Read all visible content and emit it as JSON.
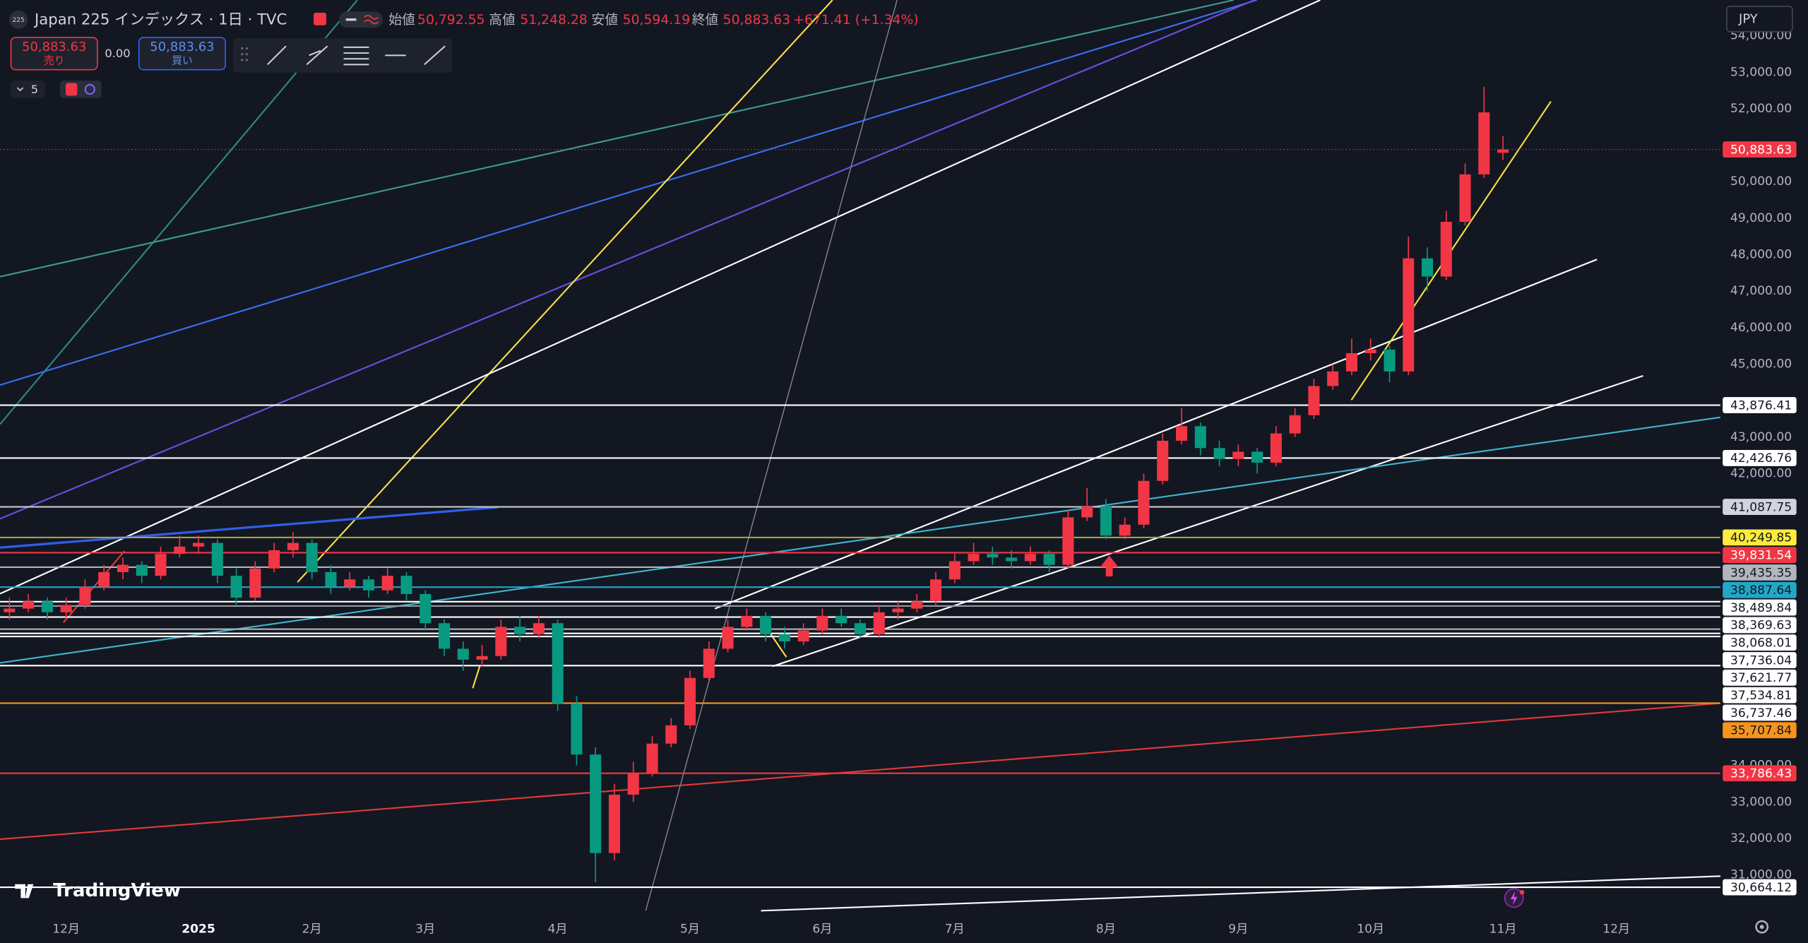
{
  "header": {
    "symbol_logo": "225",
    "title": "Japan 225 インデックス · 1日 · TVC",
    "ohlc": [
      {
        "name": "始値",
        "value": "50,792.55"
      },
      {
        "name": "高値",
        "value": "51,248.28"
      },
      {
        "name": "安値",
        "value": "50,594.19"
      },
      {
        "name": "終値",
        "value": "50,883.63"
      }
    ],
    "change": "+671.41 (+1.34%)"
  },
  "trade": {
    "sell_price": "50,883.63",
    "sell_label": "売り",
    "spread": "0.00",
    "buy_price": "50,883.63",
    "buy_label": "買い"
  },
  "indicator_count": 5,
  "currency": "JPY",
  "brand": "TradingView",
  "chart_data": {
    "type": "candlestick",
    "up_color": "#f23645",
    "down_color": "#089981",
    "grid": false,
    "categories": [
      null,
      null,
      null,
      "12月",
      null,
      null,
      null,
      null,
      null,
      null,
      "2025",
      null,
      null,
      null,
      null,
      null,
      "2月",
      null,
      null,
      null,
      null,
      null,
      "3月",
      null,
      null,
      null,
      null,
      null,
      null,
      "4月",
      null,
      null,
      null,
      null,
      null,
      null,
      "5月",
      null,
      null,
      null,
      null,
      null,
      null,
      "6月",
      null,
      null,
      null,
      null,
      null,
      null,
      "7月",
      null,
      null,
      null,
      null,
      null,
      null,
      null,
      "8月",
      null,
      null,
      null,
      null,
      null,
      null,
      "9月",
      null,
      null,
      null,
      null,
      null,
      null,
      "10月",
      null,
      null,
      null,
      null,
      null,
      null,
      "11月",
      null,
      null,
      null,
      null,
      null,
      "12月",
      null,
      null,
      null,
      null,
      null
    ],
    "values": [
      [
        38200,
        38600,
        38000,
        38300
      ],
      [
        38300,
        38700,
        38200,
        38500
      ],
      [
        38500,
        38600,
        38000,
        38200
      ],
      [
        38200,
        38600,
        38000,
        38400
      ],
      [
        38400,
        39100,
        38300,
        38900
      ],
      [
        38900,
        39500,
        38800,
        39300
      ],
      [
        39300,
        39700,
        39100,
        39500
      ],
      [
        39500,
        39600,
        39000,
        39200
      ],
      [
        39200,
        40000,
        39100,
        39800
      ],
      [
        39800,
        40300,
        39700,
        40000
      ],
      [
        40000,
        40300,
        39800,
        40100
      ],
      [
        40100,
        40200,
        39000,
        39200
      ],
      [
        39200,
        39400,
        38400,
        38600
      ],
      [
        38600,
        39600,
        38500,
        39400
      ],
      [
        39400,
        40100,
        39300,
        39900
      ],
      [
        39900,
        40400,
        39700,
        40100
      ],
      [
        40100,
        40200,
        39100,
        39300
      ],
      [
        39300,
        39500,
        38700,
        38900
      ],
      [
        38900,
        39300,
        38800,
        39100
      ],
      [
        39100,
        39200,
        38600,
        38800
      ],
      [
        38800,
        39400,
        38700,
        39200
      ],
      [
        39200,
        39300,
        38500,
        38700
      ],
      [
        38700,
        38800,
        37700,
        37900
      ],
      [
        37900,
        38000,
        37000,
        37200
      ],
      [
        37200,
        37400,
        36600,
        36900
      ],
      [
        36900,
        37300,
        36700,
        37000
      ],
      [
        37000,
        38000,
        36900,
        37800
      ],
      [
        37800,
        38100,
        37400,
        37600
      ],
      [
        37600,
        38100,
        37500,
        37900
      ],
      [
        37900,
        38000,
        35500,
        35700
      ],
      [
        35700,
        35900,
        34000,
        34300
      ],
      [
        34300,
        34500,
        30800,
        31600
      ],
      [
        31600,
        33500,
        31400,
        33200
      ],
      [
        33200,
        34100,
        33000,
        33800
      ],
      [
        33800,
        34800,
        33700,
        34600
      ],
      [
        34600,
        35300,
        34500,
        35100
      ],
      [
        35100,
        36600,
        35000,
        36400
      ],
      [
        36400,
        37400,
        36300,
        37200
      ],
      [
        37200,
        38000,
        37100,
        37800
      ],
      [
        37800,
        38300,
        37700,
        38100
      ],
      [
        38100,
        38200,
        37400,
        37600
      ],
      [
        37600,
        37800,
        37200,
        37400
      ],
      [
        37400,
        37900,
        37300,
        37700
      ],
      [
        37700,
        38300,
        37600,
        38100
      ],
      [
        38100,
        38300,
        37800,
        37900
      ],
      [
        37900,
        38000,
        37500,
        37600
      ],
      [
        37600,
        38400,
        37500,
        38200
      ],
      [
        38200,
        38500,
        38000,
        38300
      ],
      [
        38300,
        38700,
        38200,
        38500
      ],
      [
        38500,
        39300,
        38400,
        39100
      ],
      [
        39100,
        39800,
        39000,
        39600
      ],
      [
        39600,
        40100,
        39500,
        39800
      ],
      [
        39800,
        40000,
        39500,
        39700
      ],
      [
        39700,
        39900,
        39400,
        39600
      ],
      [
        39600,
        40000,
        39500,
        39800
      ],
      [
        39800,
        39900,
        39300,
        39500
      ],
      [
        39500,
        41000,
        39400,
        40800
      ],
      [
        40800,
        41600,
        40700,
        41100
      ],
      [
        41100,
        41300,
        40200,
        40300
      ],
      [
        40300,
        40800,
        40200,
        40600
      ],
      [
        40600,
        42000,
        40500,
        41800
      ],
      [
        41800,
        43100,
        41700,
        42900
      ],
      [
        42900,
        43800,
        42800,
        43300
      ],
      [
        43300,
        43400,
        42500,
        42700
      ],
      [
        42700,
        42900,
        42200,
        42400
      ],
      [
        42400,
        42800,
        42200,
        42600
      ],
      [
        42600,
        42700,
        42000,
        42300
      ],
      [
        42300,
        43300,
        42200,
        43100
      ],
      [
        43100,
        43800,
        43000,
        43600
      ],
      [
        43600,
        44600,
        43500,
        44400
      ],
      [
        44400,
        45000,
        44300,
        44800
      ],
      [
        44800,
        45700,
        44700,
        45300
      ],
      [
        45300,
        45700,
        45100,
        45400
      ],
      [
        45400,
        45500,
        44500,
        44800
      ],
      [
        44800,
        48500,
        44700,
        47900
      ],
      [
        47900,
        48200,
        47000,
        47400
      ],
      [
        47400,
        49200,
        47300,
        48900
      ],
      [
        48900,
        50500,
        48800,
        50200
      ],
      [
        50200,
        52600,
        50100,
        51900
      ],
      [
        50792.55,
        51248.28,
        50594.19,
        50883.63
      ],
      null,
      null,
      null,
      null,
      null,
      null,
      null,
      null,
      null,
      null,
      null
    ],
    "ylim": [
      29925,
      54980
    ],
    "yticks": [
      {
        "value": 54000,
        "label": "54,000.00"
      },
      {
        "value": 53000,
        "label": "53,000.00"
      },
      {
        "value": 52000,
        "label": "52,000.00"
      },
      {
        "value": 50000,
        "label": "50,000.00"
      },
      {
        "value": 49000,
        "label": "49,000.00"
      },
      {
        "value": 48000,
        "label": "48,000.00"
      },
      {
        "value": 47000,
        "label": "47,000.00"
      },
      {
        "value": 46000,
        "label": "46,000.00"
      },
      {
        "value": 45000,
        "label": "45,000.00"
      },
      {
        "value": 43000,
        "label": "43,000.00"
      },
      {
        "value": 42000,
        "label": "42,000.00"
      },
      {
        "value": 34000,
        "label": "34,000.00"
      },
      {
        "value": 33000,
        "label": "33,000.00"
      },
      {
        "value": 32000,
        "label": "32,000.00"
      },
      {
        "value": 31000,
        "label": "31,000.00"
      }
    ],
    "last_price": {
      "value": 50883.63,
      "label": "50,883.63",
      "color": "#f23645",
      "label_bg": "#f23645",
      "text_color": "#ffffff"
    },
    "price_lines": [
      {
        "value": 43876.41,
        "label": "43,876.41",
        "color": "#ffffff",
        "label_bg": "#ffffff",
        "text_color": "#131722"
      },
      {
        "value": 42426.76,
        "label": "42,426.76",
        "color": "#ffffff",
        "label_bg": "#ffffff",
        "text_color": "#131722"
      },
      {
        "value": 41087.75,
        "label": "41,087.75",
        "color": "#c8c9cc",
        "label_bg": "#d1d4dc",
        "text_color": "#131722"
      },
      {
        "value": 40249.85,
        "label": "40,249.85",
        "color": "#b5a642",
        "label_bg": "#ffeb3b",
        "text_color": "#131722"
      },
      {
        "value": 39831.54,
        "label": "39,831.54",
        "color": "#f23645",
        "label_bg": "#f23645",
        "text_color": "#ffffff"
      },
      {
        "value": 39435.35,
        "label": "39,435.35",
        "color": "#b2b5be",
        "label_bg": "#b2b5be",
        "text_color": "#131722"
      },
      {
        "value": 38887.64,
        "label": "38,887.64",
        "color": "#22a7c7",
        "label_bg": "#22a7c7",
        "text_color": "#131722"
      },
      {
        "value": 38489.84,
        "label": "38,489.84",
        "color": "#ffffff",
        "label_bg": "#ffffff",
        "text_color": "#131722"
      },
      {
        "value": 38369.63,
        "label": "38,369.63",
        "color": "#9598a1",
        "label_bg": "#ffffff",
        "text_color": "#131722"
      },
      {
        "value": 38068.01,
        "label": "38,068.01",
        "color": "#ffffff",
        "label_bg": "#ffffff",
        "text_color": "#131722"
      },
      {
        "value": 37736.04,
        "label": "37,736.04",
        "color": "#b2b5be",
        "label_bg": "#ffffff",
        "text_color": "#131722"
      },
      {
        "value": 37621.77,
        "label": "37,621.77",
        "color": "#ffffff",
        "label_bg": "#ffffff",
        "text_color": "#131722"
      },
      {
        "value": 37534.81,
        "label": "37,534.81",
        "color": "#ffffff",
        "label_bg": "#ffffff",
        "text_color": "#131722"
      },
      {
        "value": 36737.46,
        "label": "36,737.46",
        "color": "#ffffff",
        "label_bg": "#ffffff",
        "text_color": "#131722"
      },
      {
        "value": 35707.84,
        "label": "35,707.84",
        "color": "#f7941d",
        "label_bg": "#f7941d",
        "text_color": "#131722"
      },
      {
        "value": 33786.43,
        "label": "33,786.43",
        "color": "#f23645",
        "label_bg": "#f23645",
        "text_color": "#ffffff"
      },
      {
        "value": 30664.12,
        "label": "30,664.12",
        "color": "#ffffff",
        "label_bg": "#ffffff",
        "text_color": "#131722"
      }
    ]
  }
}
